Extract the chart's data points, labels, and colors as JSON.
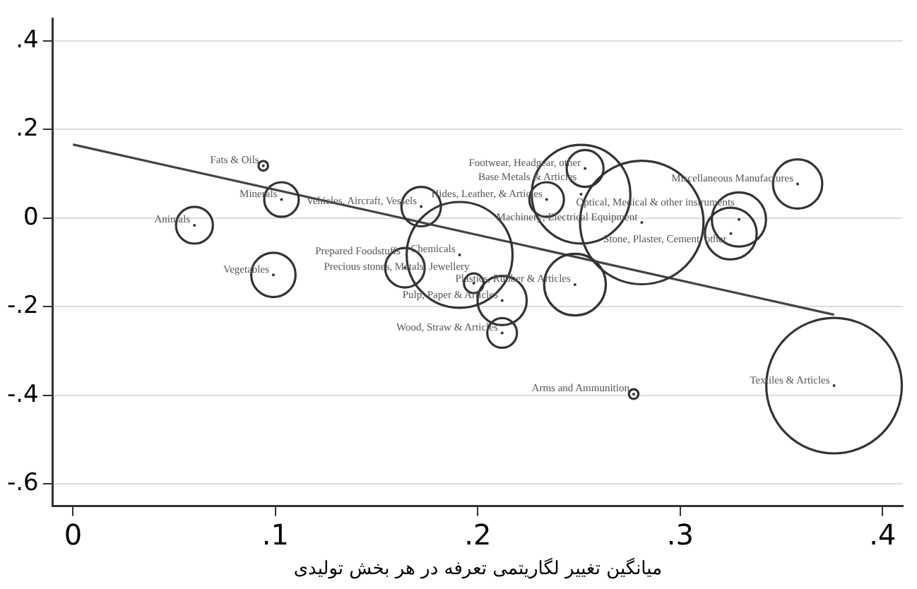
{
  "chart_data": {
    "type": "bubble",
    "xlabel": "میانگین تغییر لگاریتمی تعرفه در هر بخش تولیدی",
    "xlim": [
      -0.01,
      0.41
    ],
    "xticks": [
      {
        "value": 0,
        "label": "0"
      },
      {
        "value": 0.1,
        "label": ".1"
      },
      {
        "value": 0.2,
        "label": ".2"
      },
      {
        "value": 0.3,
        "label": ".3"
      },
      {
        "value": 0.4,
        "label": ".4"
      }
    ],
    "ylim": [
      -0.65,
      0.45
    ],
    "yticks": [
      {
        "value": -0.6,
        "label": "-.6"
      },
      {
        "value": -0.4,
        "label": "-.4"
      },
      {
        "value": -0.2,
        "label": "-.2"
      },
      {
        "value": 0,
        "label": "0"
      },
      {
        "value": 0.2,
        "label": ".2"
      },
      {
        "value": 0.4,
        "label": ".4"
      }
    ],
    "grid": "y",
    "legend": false,
    "marker": "circle",
    "series": [
      {
        "type": "bubble",
        "color": "#333333",
        "x": [
          0.094,
          0.06,
          0.103,
          0.099,
          0.172,
          0.234,
          0.253,
          0.251,
          0.281,
          0.329,
          0.325,
          0.358,
          0.376,
          0.277,
          0.212,
          0.212,
          0.248,
          0.198,
          0.191,
          0.164
        ],
        "values": [
          0.118,
          -0.016,
          0.042,
          -0.128,
          0.026,
          0.042,
          0.112,
          0.054,
          -0.01,
          -0.003,
          -0.035,
          0.077,
          -0.378,
          -0.397,
          -0.259,
          -0.186,
          -0.15,
          -0.147,
          -0.083,
          -0.112
        ],
        "sizes": [
          0.005,
          0.074,
          0.065,
          0.107,
          0.085,
          0.065,
          0.074,
          0.53,
          0.83,
          0.16,
          0.146,
          0.132,
          1,
          0.005,
          0.048,
          0.132,
          0.207,
          0.021,
          0.61,
          0.085
        ]
      },
      {
        "type": "line",
        "marker": "none",
        "color": "#444444",
        "x": [
          0,
          0.376
        ],
        "values": [
          0.166,
          -0.218
        ]
      }
    ],
    "annotations": [
      {
        "text": "Fats & Oils",
        "x": 0.094,
        "y": 0.118
      },
      {
        "text": "Animals",
        "x": 0.06,
        "y": -0.016
      },
      {
        "text": "Minerals",
        "x": 0.103,
        "y": 0.042
      },
      {
        "text": "Vegetables",
        "x": 0.099,
        "y": -0.128
      },
      {
        "text": "Vehicles, Aircraft, Vessels",
        "x": 0.172,
        "y": 0.026
      },
      {
        "text": "Hides, Leather, & Articles",
        "x": 0.234,
        "y": 0.042
      },
      {
        "text": "Footwear, Headgear, other",
        "x": 0.253,
        "y": 0.112
      },
      {
        "text": "Base Metals & Articles",
        "x": 0.251,
        "y": 0.054
      },
      {
        "text": "Machinery; Electrical Equipment",
        "x": 0.281,
        "y": -0.01
      },
      {
        "text": "Optical, Medical & other instruments",
        "x": 0.329,
        "y": -0.003
      },
      {
        "text": "Stone, Plaster, Cement, other",
        "x": 0.325,
        "y": -0.035
      },
      {
        "text": "Miscellaneous Manufactures",
        "x": 0.358,
        "y": 0.077
      },
      {
        "text": "Textiles & Articles",
        "x": 0.376,
        "y": -0.378
      },
      {
        "text": "Arms and Ammunition",
        "x": 0.277,
        "y": -0.397
      },
      {
        "text": "Wood, Straw & Articles",
        "x": 0.212,
        "y": -0.259
      },
      {
        "text": "Pulp, Paper & Articles",
        "x": 0.212,
        "y": -0.186
      },
      {
        "text": "Plastics, Rubber & Articles",
        "x": 0.248,
        "y": -0.15
      },
      {
        "text": "Precious stones, Metals, Jewellery",
        "x": 0.198,
        "y": -0.147
      },
      {
        "text": "Chemicals",
        "x": 0.191,
        "y": -0.083
      },
      {
        "text": "Prepared Foodstuffs",
        "x": 0.164,
        "y": -0.112
      }
    ]
  }
}
